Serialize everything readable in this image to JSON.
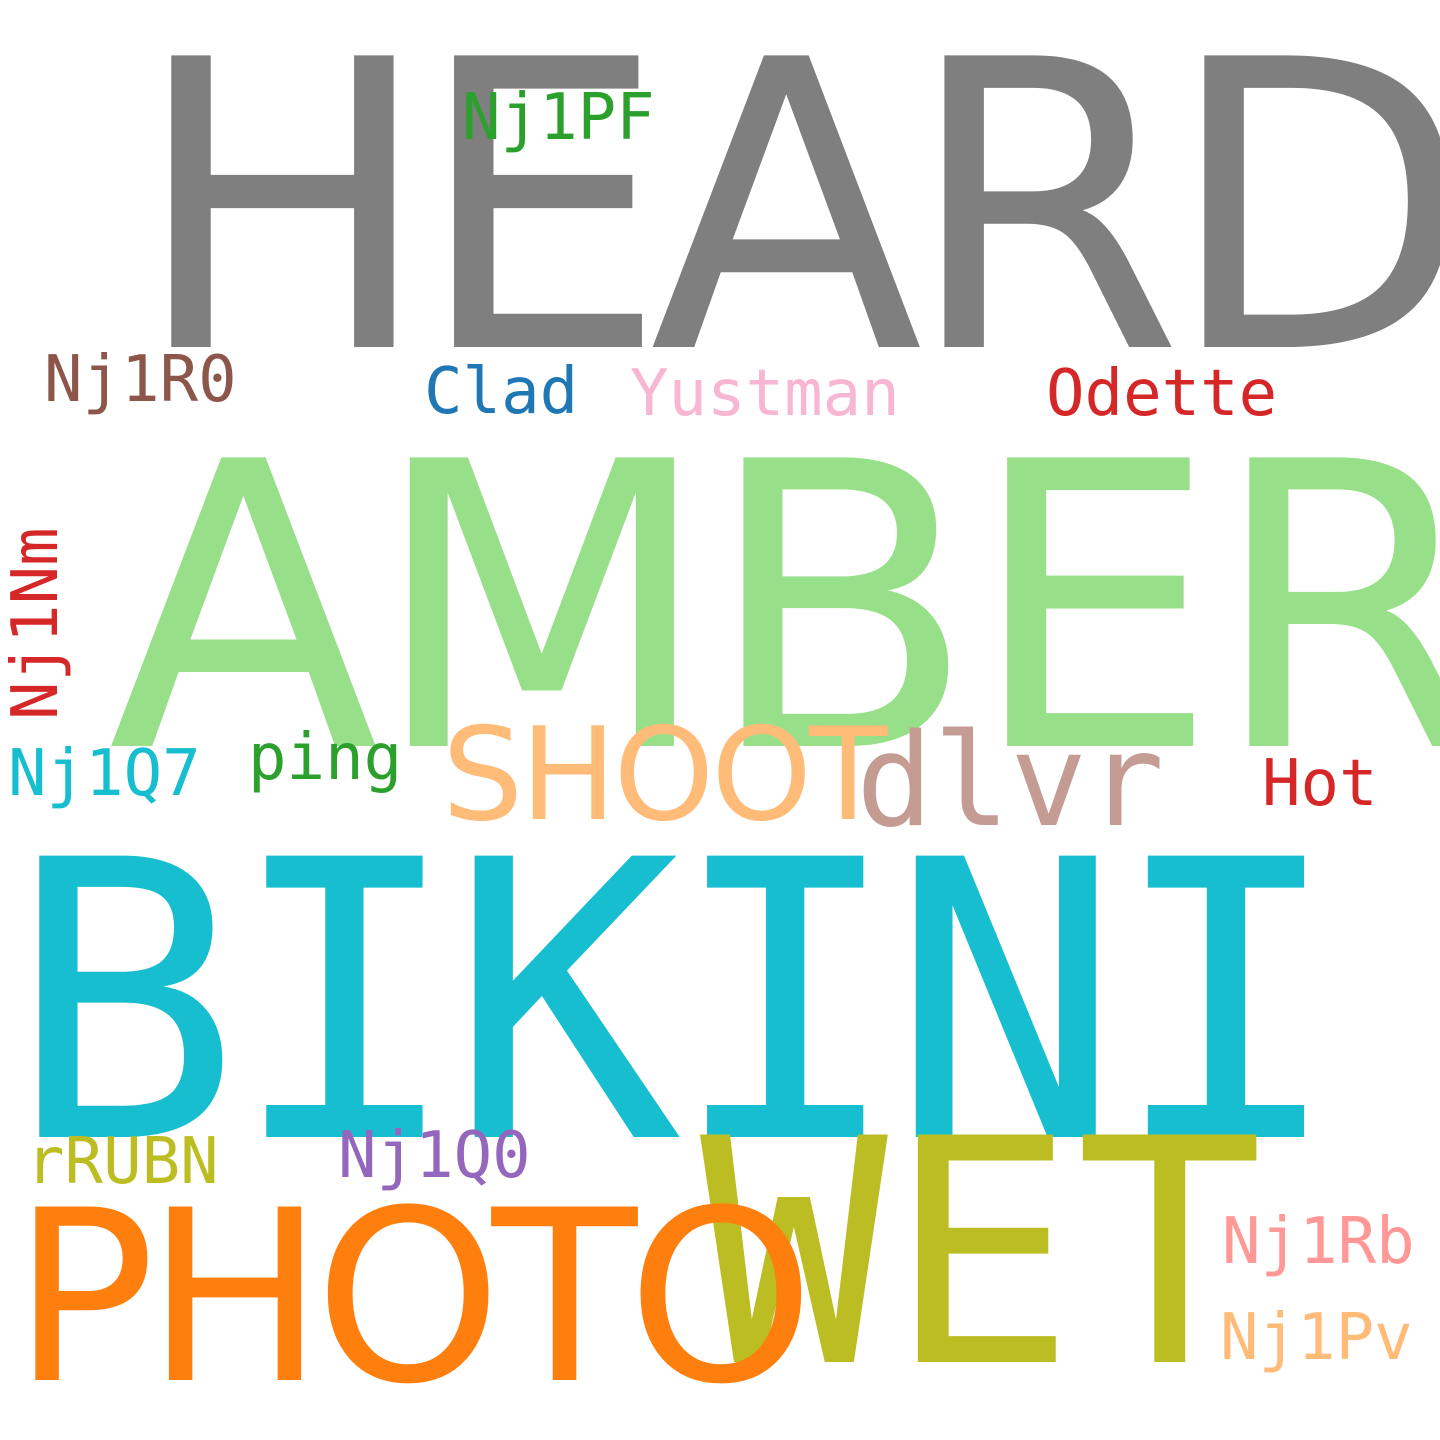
{
  "words": [
    {
      "text": "HEARD",
      "color": "#7f7f7f"
    },
    {
      "text": "Nj1PF",
      "color": "#2ca02c"
    },
    {
      "text": "Nj1R0",
      "color": "#8c564b"
    },
    {
      "text": "Clad",
      "color": "#1f77b4"
    },
    {
      "text": "Yustman",
      "color": "#f7b6d2"
    },
    {
      "text": "Odette",
      "color": "#d62728"
    },
    {
      "text": "AMBER",
      "color": "#98df8a"
    },
    {
      "text": "Nj1Nm",
      "color": "#d62728"
    },
    {
      "text": "Nj1Q7",
      "color": "#17becf"
    },
    {
      "text": "ping",
      "color": "#2ca02c"
    },
    {
      "text": "SHOOT",
      "color": "#ffbb78"
    },
    {
      "text": "dlvr",
      "color": "#c49c94"
    },
    {
      "text": "Hot",
      "color": "#d62728"
    },
    {
      "text": "BIKINI",
      "color": "#17becf"
    },
    {
      "text": "rRUBN",
      "color": "#bcbd22"
    },
    {
      "text": "Nj1Q0",
      "color": "#9467bd"
    },
    {
      "text": "WET",
      "color": "#bcbd22"
    },
    {
      "text": "PHOTO",
      "color": "#ff7f0e"
    },
    {
      "text": "Nj1Rb",
      "color": "#ff9896"
    },
    {
      "text": "Nj1Pv",
      "color": "#ffbb78"
    }
  ]
}
